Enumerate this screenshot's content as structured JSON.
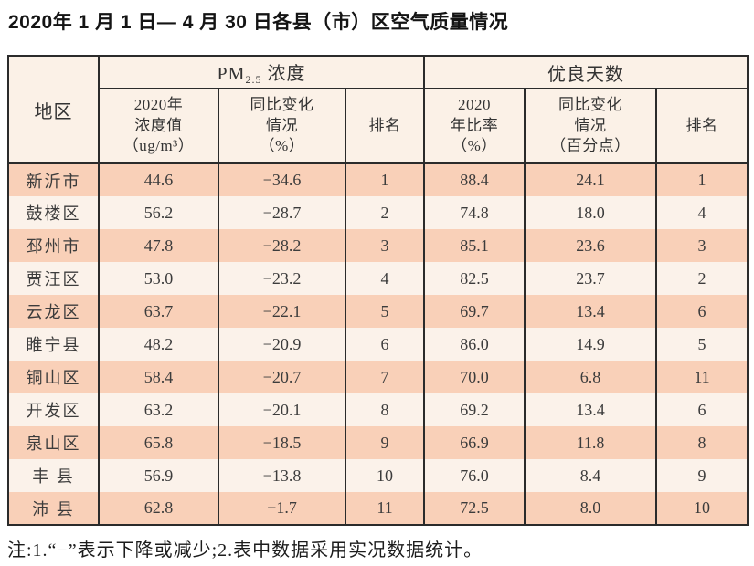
{
  "page": {
    "title": "2020年 1 月 1 日— 4 月 30 日各县（市）区空气质量情况",
    "footnote": "注:1.“−”表示下降或减少;2.表中数据采用实况数据统计。"
  },
  "table": {
    "header": {
      "region": "地区",
      "pm_group_prefix": "PM",
      "pm_group_sub": "2.5",
      "pm_group_suffix": " 浓度",
      "days_group": "优良天数",
      "pm_value": "2020年\n浓度值\n（ug/m³）",
      "pm_change": "同比变化\n情况\n（%）",
      "pm_rank": "排名",
      "days_ratio": "2020\n年比率\n（%）",
      "days_change": "同比变化\n情况\n（百分点）",
      "days_rank": "排名"
    },
    "rows": [
      {
        "region": "新沂市",
        "pm_value": "44.6",
        "pm_change": "−34.6",
        "pm_rank": "1",
        "days_ratio": "88.4",
        "days_change": "24.1",
        "days_rank": "1"
      },
      {
        "region": "鼓楼区",
        "pm_value": "56.2",
        "pm_change": "−28.7",
        "pm_rank": "2",
        "days_ratio": "74.8",
        "days_change": "18.0",
        "days_rank": "4"
      },
      {
        "region": "邳州市",
        "pm_value": "47.8",
        "pm_change": "−28.2",
        "pm_rank": "3",
        "days_ratio": "85.1",
        "days_change": "23.6",
        "days_rank": "3"
      },
      {
        "region": "贾汪区",
        "pm_value": "53.0",
        "pm_change": "−23.2",
        "pm_rank": "4",
        "days_ratio": "82.5",
        "days_change": "23.7",
        "days_rank": "2"
      },
      {
        "region": "云龙区",
        "pm_value": "63.7",
        "pm_change": "−22.1",
        "pm_rank": "5",
        "days_ratio": "69.7",
        "days_change": "13.4",
        "days_rank": "6"
      },
      {
        "region": "睢宁县",
        "pm_value": "48.2",
        "pm_change": "−20.9",
        "pm_rank": "6",
        "days_ratio": "86.0",
        "days_change": "14.9",
        "days_rank": "5"
      },
      {
        "region": "铜山区",
        "pm_value": "58.4",
        "pm_change": "−20.7",
        "pm_rank": "7",
        "days_ratio": "70.0",
        "days_change": "6.8",
        "days_rank": "11"
      },
      {
        "region": "开发区",
        "pm_value": "63.2",
        "pm_change": "−20.1",
        "pm_rank": "8",
        "days_ratio": "69.2",
        "days_change": "13.4",
        "days_rank": "6"
      },
      {
        "region": "泉山区",
        "pm_value": "65.8",
        "pm_change": "−18.5",
        "pm_rank": "9",
        "days_ratio": "66.9",
        "days_change": "11.8",
        "days_rank": "8"
      },
      {
        "region": "丰 县",
        "pm_value": "56.9",
        "pm_change": "−13.8",
        "pm_rank": "10",
        "days_ratio": "76.0",
        "days_change": "8.4",
        "days_rank": "9"
      },
      {
        "region": "沛 县",
        "pm_value": "62.8",
        "pm_change": "−1.7",
        "pm_rank": "11",
        "days_ratio": "72.5",
        "days_change": "8.0",
        "days_rank": "10"
      }
    ],
    "colors": {
      "row_odd": "#f9d0b8",
      "row_even": "#fbf2ea",
      "header_bg": "#fbf1e7",
      "border": "#2b2b2b"
    }
  }
}
